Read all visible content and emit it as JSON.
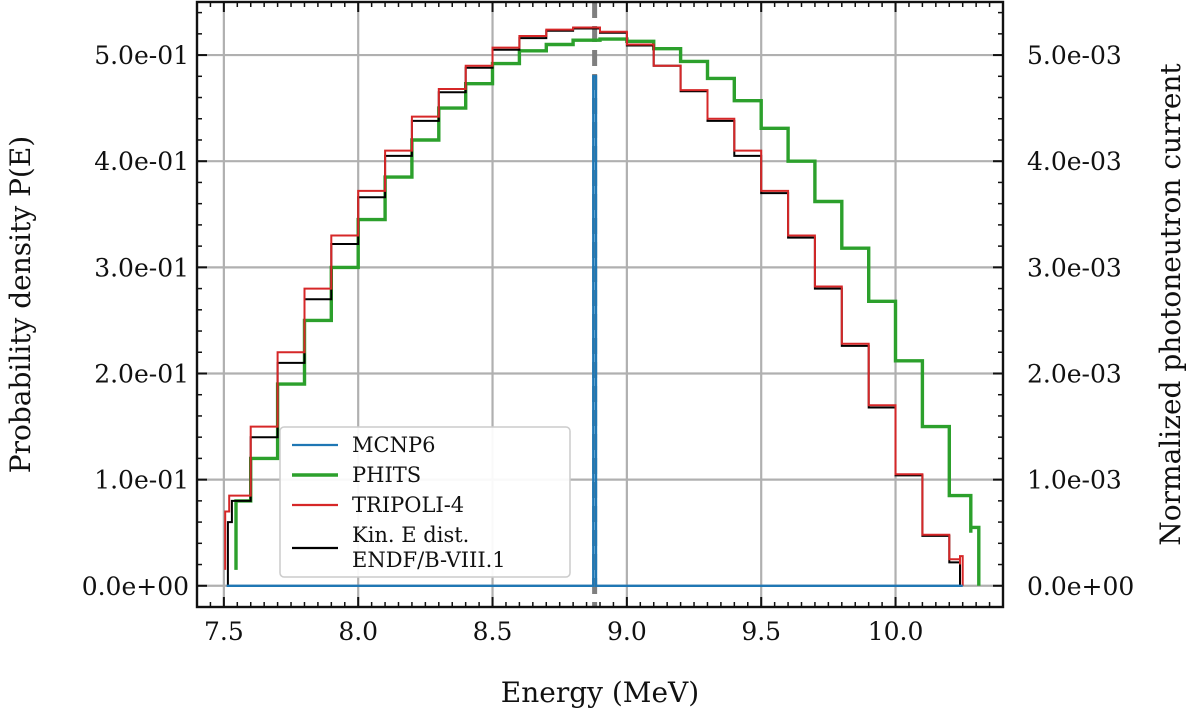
{
  "chart_data": {
    "type": "line",
    "xlabel": "Energy (MeV)",
    "ylabel_left": "Probability density P(E)",
    "ylabel_right": "Normalized photoneutron current",
    "xlim": [
      7.4,
      10.4
    ],
    "ylim_left": [
      -0.02,
      0.55
    ],
    "ylim_right": [
      -0.0002,
      0.0055
    ],
    "x_ticks": [
      7.5,
      8.0,
      8.5,
      9.0,
      9.5,
      10.0
    ],
    "x_tick_labels": [
      "7.5",
      "8.0",
      "8.5",
      "9.0",
      "9.5",
      "10.0"
    ],
    "y_left_ticks": [
      0.0,
      0.1,
      0.2,
      0.3,
      0.4,
      0.5
    ],
    "y_left_tick_labels": [
      "0.0e+00",
      "1.0e-01",
      "2.0e-01",
      "3.0e-01",
      "4.0e-01",
      "5.0e-01"
    ],
    "y_right_ticks": [
      0.0,
      0.001,
      0.002,
      0.003,
      0.004,
      0.005
    ],
    "y_right_tick_labels": [
      "0.0e+00",
      "1.0e-03",
      "2.0e-03",
      "3.0e-03",
      "4.0e-03",
      "5.0e-03"
    ],
    "grid": true,
    "legend_position": "lower-left",
    "vertical_marker_x": 8.88,
    "series": [
      {
        "name": "MCNP6",
        "color": "#1f77b4",
        "axis": "right",
        "style": "step",
        "x": [
          7.51,
          8.875,
          8.875,
          8.885,
          8.885,
          10.25
        ],
        "y": [
          0.0,
          0.0,
          0.0048,
          0.0048,
          0.0,
          0.0
        ]
      },
      {
        "name": "PHITS",
        "color": "#2ca02c",
        "axis": "left",
        "style": "step",
        "x": [
          7.545,
          7.545,
          7.6,
          7.7,
          7.8,
          7.9,
          8.0,
          8.1,
          8.2,
          8.3,
          8.4,
          8.5,
          8.6,
          8.7,
          8.8,
          8.9,
          9.0,
          9.1,
          9.2,
          9.3,
          9.4,
          9.5,
          9.6,
          9.7,
          9.8,
          9.9,
          10.0,
          10.1,
          10.2,
          10.28,
          10.28,
          10.31,
          10.31
        ],
        "y": [
          0.015,
          0.08,
          0.12,
          0.19,
          0.25,
          0.3,
          0.345,
          0.385,
          0.42,
          0.45,
          0.473,
          0.492,
          0.504,
          0.51,
          0.514,
          0.515,
          0.513,
          0.506,
          0.494,
          0.478,
          0.457,
          0.431,
          0.4,
          0.362,
          0.318,
          0.268,
          0.212,
          0.15,
          0.085,
          0.05,
          0.055,
          0.055,
          0.0
        ]
      },
      {
        "name": "TRIPOLI-4",
        "color": "#d62728",
        "axis": "left",
        "style": "step",
        "x": [
          7.505,
          7.505,
          7.52,
          7.6,
          7.7,
          7.8,
          7.9,
          8.0,
          8.1,
          8.2,
          8.3,
          8.4,
          8.5,
          8.6,
          8.7,
          8.8,
          8.9,
          9.0,
          9.1,
          9.2,
          9.3,
          9.4,
          9.5,
          9.6,
          9.7,
          9.8,
          9.9,
          10.0,
          10.1,
          10.2,
          10.24,
          10.24,
          10.25,
          10.25
        ],
        "y": [
          0.015,
          0.07,
          0.085,
          0.15,
          0.22,
          0.28,
          0.33,
          0.372,
          0.41,
          0.442,
          0.468,
          0.49,
          0.507,
          0.518,
          0.524,
          0.526,
          0.522,
          0.51,
          0.49,
          0.467,
          0.44,
          0.41,
          0.372,
          0.33,
          0.282,
          0.228,
          0.17,
          0.105,
          0.048,
          0.025,
          0.02,
          0.028,
          0.028,
          0.0
        ]
      },
      {
        "name": "Kin. E dist. ENDF/B-VIII.1",
        "color": "#000000",
        "axis": "left",
        "style": "step",
        "x": [
          7.515,
          7.515,
          7.53,
          7.6,
          7.7,
          7.8,
          7.9,
          8.0,
          8.1,
          8.2,
          8.3,
          8.4,
          8.5,
          8.6,
          8.7,
          8.8,
          8.9,
          9.0,
          9.1,
          9.2,
          9.3,
          9.4,
          9.5,
          9.6,
          9.7,
          9.8,
          9.9,
          10.0,
          10.1,
          10.2,
          10.24,
          10.24
        ],
        "y": [
          0.0,
          0.06,
          0.08,
          0.14,
          0.21,
          0.27,
          0.322,
          0.366,
          0.405,
          0.438,
          0.465,
          0.488,
          0.505,
          0.516,
          0.523,
          0.525,
          0.521,
          0.509,
          0.49,
          0.466,
          0.438,
          0.405,
          0.37,
          0.328,
          0.28,
          0.226,
          0.168,
          0.104,
          0.047,
          0.022,
          0.018,
          0.0
        ]
      }
    ]
  }
}
